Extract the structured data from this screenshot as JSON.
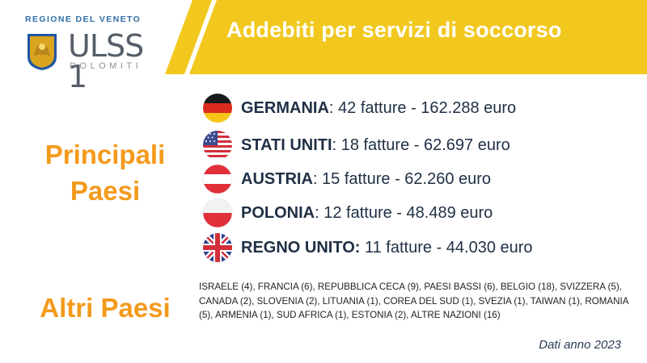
{
  "header": {
    "logo_region": "REGIONE DEL VENETO",
    "logo_name": "ULSS 1",
    "logo_sub": "DOLOMITI",
    "title": "Addebiti per servizi di soccorso"
  },
  "sections": {
    "main_label_line1": "Principali",
    "main_label_line2": "Paesi",
    "other_label": "Altri Paesi"
  },
  "countries": [
    {
      "name": "GERMANIA",
      "sep": ":",
      "detail": " 42 fatture - 162.288 euro",
      "flag_icon": "germany-flag-icon"
    },
    {
      "name": "STATI UNITI",
      "sep": ":",
      "detail": " 18 fatture - 62.697 euro",
      "flag_icon": "usa-flag-icon"
    },
    {
      "name": "AUSTRIA",
      "sep": ":",
      "detail": " 15 fatture - 62.260 euro",
      "flag_icon": "austria-flag-icon"
    },
    {
      "name": "POLONIA",
      "sep": ":",
      "detail": " 12 fatture - 48.489 euro",
      "flag_icon": "poland-flag-icon"
    },
    {
      "name": "REGNO UNITO:",
      "sep": "",
      "detail": " 11 fatture - 44.030 euro",
      "flag_icon": "uk-flag-icon"
    }
  ],
  "other_countries_text": "ISRAELE (4),  FRANCIA (6), REPUBBLICA CECA (9), PAESI BASSI (6), BELGIO (18), SVIZZERA (5), CANADA (2), SLOVENIA (2), LITUANIA (1), COREA DEL SUD (1), SVEZIA (1), TAIWAN (1), ROMANIA (5), ARMENIA (1), SUD AFRICA (1), ESTONIA (2), ALTRE NAZIONI (16)",
  "footer_note": "Dati anno 2023",
  "colors": {
    "banner_yellow": "#f2c81f",
    "accent_orange": "#f39a1c",
    "text_navy": "#1f2f45",
    "logo_blue": "#2f6fa7"
  }
}
